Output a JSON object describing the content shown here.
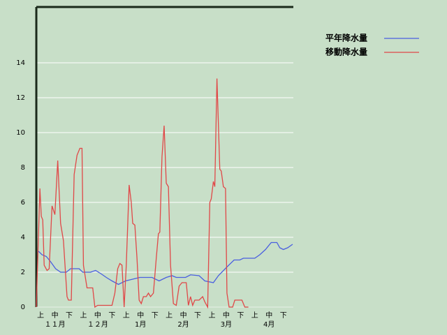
{
  "chart_data": {
    "type": "line",
    "xlim": [
      0,
      180
    ],
    "ylim": [
      0,
      17.2
    ],
    "yticks": [
      0,
      2,
      4,
      6,
      8,
      10,
      12,
      14
    ],
    "xticks": [
      {
        "value": 3,
        "label": "上"
      },
      {
        "value": 13,
        "label": "中"
      },
      {
        "value": 23,
        "label": "下"
      },
      {
        "value": 33,
        "label": "上"
      },
      {
        "value": 43,
        "label": "中"
      },
      {
        "value": 53,
        "label": "下"
      },
      {
        "value": 63,
        "label": "上"
      },
      {
        "value": 73,
        "label": "中"
      },
      {
        "value": 83,
        "label": "下"
      },
      {
        "value": 93,
        "label": "上"
      },
      {
        "value": 103,
        "label": "中"
      },
      {
        "value": 113,
        "label": "下"
      },
      {
        "value": 123,
        "label": "上"
      },
      {
        "value": 133,
        "label": "中"
      },
      {
        "value": 143,
        "label": "下"
      },
      {
        "value": 153,
        "label": "上"
      },
      {
        "value": 163,
        "label": "中"
      },
      {
        "value": 173,
        "label": "下"
      }
    ],
    "month_ticks": [
      {
        "value": 13,
        "label": "１１月"
      },
      {
        "value": 43,
        "label": "１２月"
      },
      {
        "value": 73,
        "label": "1月"
      },
      {
        "value": 103,
        "label": "2月"
      },
      {
        "value": 133,
        "label": "3月"
      },
      {
        "value": 163,
        "label": "4月"
      }
    ],
    "grid": true,
    "legend": "right",
    "series": [
      {
        "name": "平年降水量",
        "color": "#4a5fe0",
        "x": [
          1.5,
          4,
          7,
          10,
          13.5,
          17,
          21,
          24,
          30,
          32.5,
          38,
          41.5,
          45.5,
          49,
          53,
          57.5,
          62.5,
          67.5,
          72.5,
          81,
          86,
          91,
          95,
          98,
          104.5,
          108,
          114,
          118,
          124,
          127.5,
          133.5,
          138.5,
          142.5,
          145,
          153,
          156.5,
          160.5,
          164.5,
          168.5,
          170.5,
          173,
          176,
          179.5
        ],
        "values": [
          3.2,
          3.0,
          2.9,
          2.6,
          2.2,
          2.0,
          2.0,
          2.2,
          2.2,
          2.0,
          2.0,
          2.1,
          1.9,
          1.7,
          1.5,
          1.3,
          1.5,
          1.6,
          1.7,
          1.7,
          1.5,
          1.7,
          1.8,
          1.7,
          1.7,
          1.85,
          1.8,
          1.5,
          1.4,
          1.8,
          2.3,
          2.7,
          2.7,
          2.8,
          2.8,
          3.0,
          3.3,
          3.7,
          3.7,
          3.4,
          3.3,
          3.4,
          3.6
        ]
      },
      {
        "name": "移動降水量",
        "color": "#e04848",
        "x": [
          0,
          2.5,
          3.5,
          4.5,
          5.5,
          7.5,
          9,
          11,
          13,
          15,
          17,
          19,
          21.5,
          22.5,
          24.5,
          26.5,
          28.5,
          30.5,
          32,
          33,
          35.5,
          39.5,
          41,
          43,
          53,
          55,
          57,
          58.5,
          60,
          61.5,
          63,
          65,
          66.5,
          67.5,
          69,
          70.5,
          72,
          73.5,
          75,
          77,
          78.5,
          80,
          82,
          84,
          85.5,
          86.5,
          88,
          89.5,
          91,
          92.5,
          94,
          96,
          98,
          100,
          102,
          105,
          106.5,
          108,
          109.5,
          111,
          114,
          116.5,
          118,
          120,
          121.5,
          122.5,
          124,
          125,
          126.5,
          128.5,
          129.5,
          131,
          132.5,
          133.5,
          135,
          137.5,
          139,
          144,
          146,
          148.5
        ],
        "values": [
          0,
          6.8,
          5.2,
          5.0,
          2.4,
          2.1,
          2.2,
          5.8,
          5.3,
          8.4,
          4.8,
          3.8,
          0.6,
          0.4,
          0.4,
          7.6,
          8.7,
          9.1,
          9.1,
          2.4,
          1.1,
          1.1,
          0,
          0.1,
          0.1,
          0.8,
          2.2,
          2.5,
          2.4,
          0,
          2.4,
          7.0,
          6.0,
          4.8,
          4.7,
          2.8,
          0.4,
          0.2,
          0.6,
          0.6,
          0.8,
          0.6,
          0.8,
          2.8,
          4.2,
          4.3,
          8.6,
          10.4,
          7.1,
          6.9,
          2.4,
          0.2,
          0.1,
          1.2,
          1.4,
          1.4,
          0.1,
          0.6,
          0.1,
          0.4,
          0.4,
          0.6,
          0.3,
          0,
          6.0,
          6.2,
          7.2,
          6.9,
          13.1,
          7.9,
          7.8,
          6.9,
          6.8,
          0.8,
          0,
          0,
          0.4,
          0.4,
          0,
          0
        ]
      }
    ]
  }
}
